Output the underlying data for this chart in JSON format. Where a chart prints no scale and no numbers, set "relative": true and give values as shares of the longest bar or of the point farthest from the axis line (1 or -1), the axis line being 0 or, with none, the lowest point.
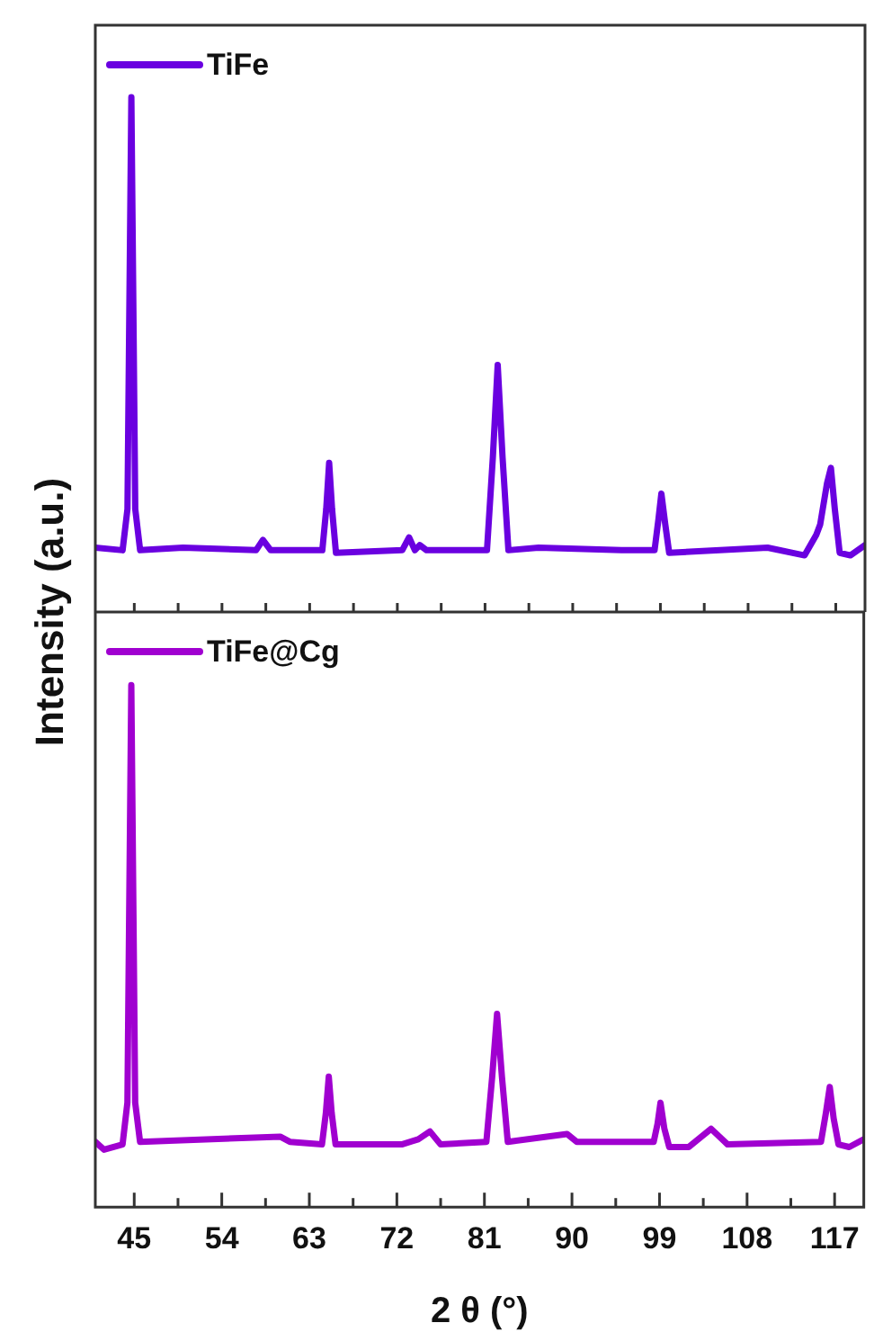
{
  "chart_data": [
    {
      "type": "line",
      "relative": true,
      "ylabel": "Intensity (a.u.)",
      "xlim": [
        41,
        120
      ],
      "xticks": [
        {
          "value": 45,
          "label": null
        },
        {
          "value": 49.5,
          "label": null
        },
        {
          "value": 54,
          "label": null
        },
        {
          "value": 58.5,
          "label": null
        },
        {
          "value": 63,
          "label": null
        },
        {
          "value": 67.5,
          "label": null
        },
        {
          "value": 72,
          "label": null
        },
        {
          "value": 76.5,
          "label": null
        },
        {
          "value": 81,
          "label": null
        },
        {
          "value": 85.5,
          "label": null
        },
        {
          "value": 90,
          "label": null
        },
        {
          "value": 94.5,
          "label": null
        },
        {
          "value": 99,
          "label": null
        },
        {
          "value": 103.5,
          "label": null
        },
        {
          "value": 108,
          "label": null
        },
        {
          "value": 112.5,
          "label": null
        },
        {
          "value": 117,
          "label": null
        }
      ],
      "tick_labels": false,
      "legend": "top left",
      "marker": "none",
      "line_style": "solid",
      "grid": false,
      "series": [
        {
          "name": "TiFe",
          "color": "#6a00e0",
          "x": [
            41,
            43.8,
            44.3,
            44.7,
            45.1,
            45.6,
            50,
            57.5,
            58.2,
            59,
            64.3,
            64.7,
            65,
            65.3,
            65.7,
            72.5,
            73.2,
            73.8,
            74.3,
            75,
            81.2,
            81.8,
            82.3,
            82.8,
            83.4,
            86.5,
            95,
            98.4,
            98.8,
            99.1,
            99.5,
            99.9,
            110,
            113.8,
            115,
            115.4,
            116.1,
            116.5,
            116.9,
            117.4,
            118.5,
            120
          ],
          "values": [
            0.125,
            0.12,
            0.2,
            1,
            0.2,
            0.12,
            0.125,
            0.12,
            0.14,
            0.12,
            0.12,
            0.2,
            0.29,
            0.2,
            0.115,
            0.12,
            0.145,
            0.12,
            0.13,
            0.12,
            0.12,
            0.3,
            0.48,
            0.3,
            0.12,
            0.125,
            0.12,
            0.12,
            0.18,
            0.23,
            0.17,
            0.115,
            0.125,
            0.11,
            0.15,
            0.17,
            0.25,
            0.28,
            0.2,
            0.115,
            0.11,
            0.13
          ]
        }
      ]
    },
    {
      "type": "line",
      "relative": true,
      "xlabel": "2 θ (°)",
      "xlim": [
        41,
        120
      ],
      "xticks": [
        45,
        {
          "value": 49.5,
          "label": null
        },
        54,
        {
          "value": 58.5,
          "label": null
        },
        63,
        {
          "value": 67.5,
          "label": null
        },
        72,
        {
          "value": 76.5,
          "label": null
        },
        81,
        {
          "value": 85.5,
          "label": null
        },
        90,
        {
          "value": 94.5,
          "label": null
        },
        99,
        {
          "value": 103.5,
          "label": null
        },
        108,
        {
          "value": 112.5,
          "label": null
        },
        117
      ],
      "tick_labels": "x",
      "legend": "top left",
      "marker": "none",
      "line_style": "solid",
      "grid": false,
      "series": [
        {
          "name": "TiFe@Cg",
          "color": "#a000d0",
          "x": [
            41,
            41.9,
            43.8,
            44.3,
            44.7,
            45.1,
            45.6,
            60,
            61,
            64.3,
            64.7,
            65,
            65.3,
            65.7,
            72.5,
            74.2,
            75.4,
            76.5,
            81.2,
            81.8,
            82.3,
            82.8,
            83.4,
            89.5,
            90.5,
            98.4,
            98.8,
            99.1,
            99.5,
            100,
            102,
            104.3,
            106,
            115.6,
            116.1,
            116.5,
            116.9,
            117.4,
            118.5,
            120
          ],
          "values": [
            0.125,
            0.11,
            0.12,
            0.2,
            1,
            0.2,
            0.125,
            0.135,
            0.125,
            0.12,
            0.18,
            0.25,
            0.18,
            0.12,
            0.12,
            0.13,
            0.145,
            0.12,
            0.125,
            0.25,
            0.37,
            0.25,
            0.125,
            0.14,
            0.125,
            0.125,
            0.16,
            0.2,
            0.15,
            0.115,
            0.115,
            0.15,
            0.12,
            0.125,
            0.18,
            0.23,
            0.17,
            0.12,
            0.115,
            0.13
          ]
        }
      ]
    }
  ]
}
